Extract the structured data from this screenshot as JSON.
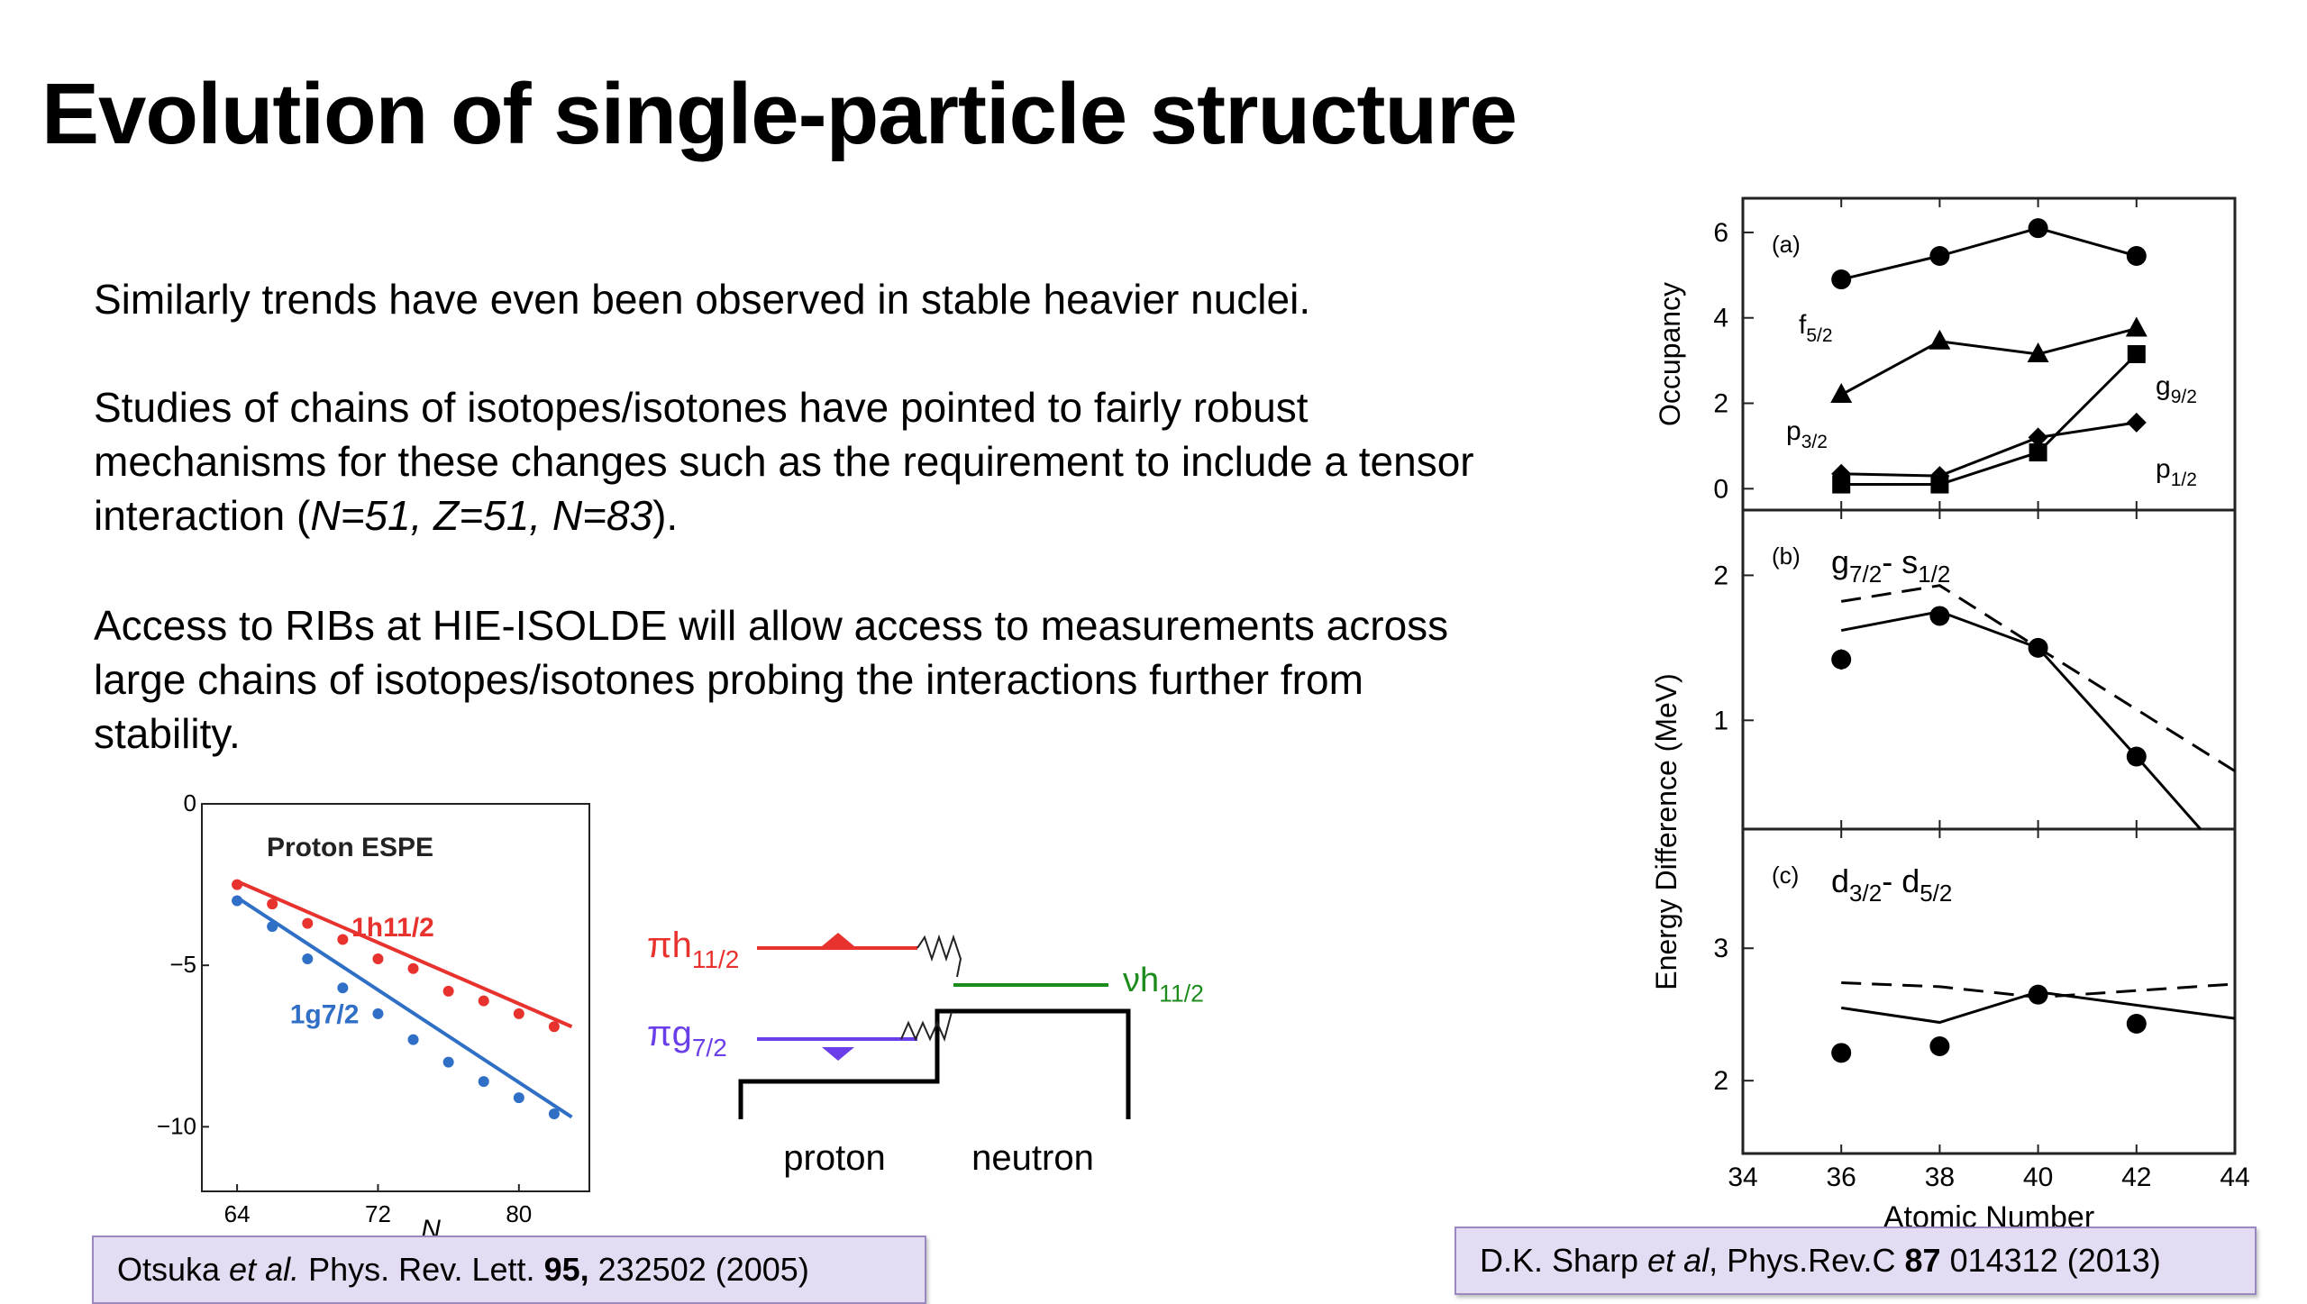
{
  "slide": {
    "title": "Evolution of single-particle structure",
    "paragraphs": {
      "p1": "Similarly trends have even been observed in stable heavier nuclei.",
      "p2_line1": "Studies of chains of isotopes/isotones have pointed to fairly robust",
      "p2_line2": "mechanisms for these changes such as the requirement to include a tensor",
      "p2_line3_prefix": "interaction (",
      "p2_line3_italic": "N=51, Z=51, N=83",
      "p2_line3_suffix": ").",
      "p3_line1": "Access to RIBs at HIE-ISOLDE will allow access to measurements across",
      "p3_line2": "large chains of isotopes/isotones probing the interactions further from",
      "p3_line3": "stability."
    },
    "references": {
      "otsuka": {
        "author": "Otsuka",
        "etal": " et al.",
        "journal": " Phys. Rev. Lett. ",
        "volume": "95,",
        "rest": " 232502 (2005)"
      },
      "sharp": {
        "author": "D.K. Sharp ",
        "etal": "et al",
        "journal": ", Phys.Rev.C ",
        "volume": "87",
        "rest": " 014312 (2013)"
      }
    }
  },
  "chart_data": [
    {
      "type": "scatter",
      "title": "Proton ESPE",
      "xlabel": "N",
      "xlim": [
        62,
        84
      ],
      "ylim": [
        -12,
        0
      ],
      "xticks": [
        64,
        72,
        80
      ],
      "yticks": [
        0,
        -5,
        -10
      ],
      "series": [
        {
          "name": "1h11/2",
          "color": "#e8322e",
          "x": [
            64,
            66,
            68,
            70,
            72,
            74,
            76,
            78,
            80,
            82
          ],
          "y": [
            -2.5,
            -3.1,
            -3.7,
            -4.2,
            -4.8,
            -5.1,
            -5.8,
            -6.1,
            -6.5,
            -6.9
          ]
        },
        {
          "name": "1g7/2",
          "color": "#2f6fc5",
          "x": [
            64,
            66,
            68,
            70,
            72,
            74,
            76,
            78,
            80,
            82
          ],
          "y": [
            -3.0,
            -3.8,
            -4.8,
            -5.7,
            -6.5,
            -7.3,
            -8.0,
            -8.6,
            -9.1,
            -9.6
          ]
        }
      ],
      "fit_lines": [
        {
          "color": "#e8322e",
          "x": [
            64,
            83
          ],
          "y": [
            -2.4,
            -6.9
          ]
        },
        {
          "color": "#2f6fc5",
          "x": [
            64,
            83
          ],
          "y": [
            -2.9,
            -9.7
          ]
        }
      ],
      "labels": {
        "y_zero": "0",
        "y_m5": "−5",
        "y_m10": "−10"
      }
    },
    {
      "type": "diagram",
      "orbitals": {
        "pi_h": {
          "prefix": "πh",
          "sub": "11/2",
          "color": "#e8322e"
        },
        "pi_g": {
          "prefix": "πg",
          "sub": "7/2",
          "color": "#6a3ee8"
        },
        "nu_h": {
          "prefix": "νh",
          "sub": "11/2",
          "color": "#1d8c1d"
        }
      },
      "wells": {
        "left": "proton",
        "right": "neutron"
      }
    },
    {
      "type": "line",
      "xlabel": "Atomic Number",
      "xlim": [
        34,
        44
      ],
      "xticks": [
        34,
        36,
        38,
        40,
        42,
        44
      ],
      "panels": [
        {
          "label": "(a)",
          "ylabel": "Occupancy",
          "ylim": [
            -0.5,
            6.8
          ],
          "yticks": [
            0,
            2,
            4,
            6
          ],
          "series": [
            {
              "name": "f5/2",
              "marker": "circle",
              "x": [
                36,
                38,
                40,
                42
              ],
              "y": [
                4.9,
                5.45,
                6.1,
                5.45
              ]
            },
            {
              "name": "p3/2",
              "marker": "triangle",
              "x": [
                36,
                38,
                40,
                42
              ],
              "y": [
                2.2,
                3.45,
                3.15,
                3.75
              ]
            },
            {
              "name": "g9/2",
              "marker": "square",
              "x": [
                36,
                38,
                40,
                42
              ],
              "y": [
                0.1,
                0.1,
                0.85,
                3.15
              ]
            },
            {
              "name": "p1/2",
              "marker": "diamond",
              "x": [
                36,
                38,
                40,
                42
              ],
              "y": [
                0.35,
                0.3,
                1.2,
                1.55
              ]
            }
          ],
          "series_labels": {
            "f": {
              "base": "f",
              "sub": "5/2"
            },
            "p3": {
              "base": "p",
              "sub": "3/2"
            },
            "g": {
              "base": "g",
              "sub": "9/2"
            },
            "p1": {
              "base": "p",
              "sub": "1/2"
            }
          }
        },
        {
          "label": "(b)",
          "title": {
            "a": "g",
            "a_sub": "7/2",
            "sep": "- ",
            "b": "s",
            "b_sub": "1/2"
          },
          "ylim": [
            0.25,
            2.45
          ],
          "yticks": [
            1,
            2
          ],
          "experiment": {
            "x": [
              36,
              38,
              40,
              42
            ],
            "y": [
              1.42,
              1.72,
              1.5,
              0.75
            ],
            "err": [
              0.07,
              0.03,
              0.03,
              0.02
            ]
          },
          "theory_solid": {
            "x": [
              36,
              38,
              40,
              42,
              43.3
            ],
            "y": [
              1.62,
              1.75,
              1.5,
              0.75,
              0.25
            ]
          },
          "theory_dashed": {
            "x": [
              36,
              38,
              40,
              44
            ],
            "y": [
              1.82,
              1.93,
              1.5,
              0.65
            ]
          }
        },
        {
          "label": "(c)",
          "title": {
            "a": "d",
            "a_sub": "3/2",
            "sep": "- ",
            "b": "d",
            "b_sub": "5/2"
          },
          "ylim": [
            1.45,
            3.9
          ],
          "yticks": [
            2,
            3
          ],
          "experiment": {
            "x": [
              36,
              38,
              40,
              42
            ],
            "y": [
              2.21,
              2.26,
              2.65,
              2.43
            ]
          },
          "theory_solid": {
            "x": [
              36,
              38,
              40,
              44
            ],
            "y": [
              2.55,
              2.44,
              2.67,
              2.47
            ]
          },
          "theory_dashed": {
            "x": [
              36,
              38,
              40,
              44
            ],
            "y": [
              2.74,
              2.71,
              2.63,
              2.73
            ]
          }
        }
      ],
      "side_ylabel": "Energy Difference (MeV)"
    }
  ]
}
